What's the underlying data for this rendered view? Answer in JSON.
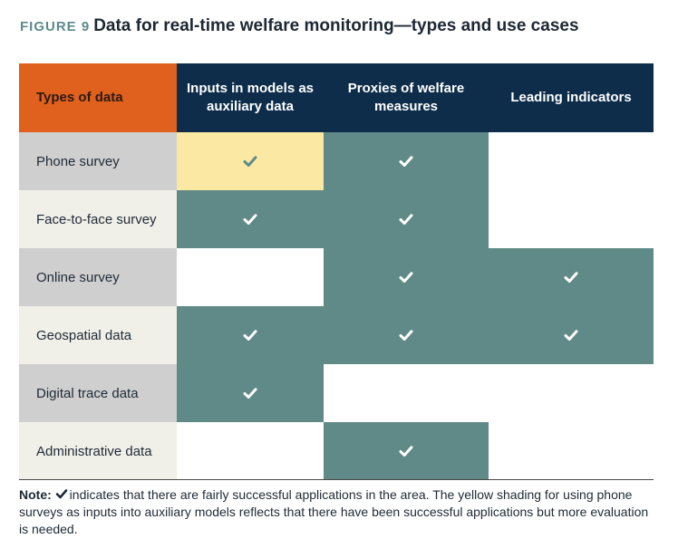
{
  "figure": {
    "label": "FIGURE 9",
    "title": "Data for real-time welfare monitoring—types and use cases"
  },
  "table": {
    "header": {
      "types": "Types of data",
      "col1": "Inputs in models as auxiliary data",
      "col2": "Proxies of welfare measures",
      "col3": "Leading indicators"
    },
    "rows": [
      {
        "label": "Phone survey",
        "col1": "yellow-check",
        "col2": "teal-check",
        "col3": "empty"
      },
      {
        "label": "Face-to-face survey",
        "col1": "teal-check",
        "col2": "teal-check",
        "col3": "empty"
      },
      {
        "label": "Online survey",
        "col1": "empty",
        "col2": "teal-check",
        "col3": "teal-check"
      },
      {
        "label": "Geospatial data",
        "col1": "teal-check",
        "col2": "teal-check",
        "col3": "teal-check"
      },
      {
        "label": "Digital trace data",
        "col1": "teal-check",
        "col2": "empty",
        "col3": "empty"
      },
      {
        "label": "Administrative data",
        "col1": "empty",
        "col2": "teal-check",
        "col3": "empty"
      }
    ]
  },
  "note": {
    "label": "Note:",
    "icon": "checkmark-icon",
    "text": "indicates that there are fairly successful applications in the area. The yellow shading for using phone surveys as inputs into auxiliary models reflects that there have been successful applications but more evaluation is needed."
  },
  "colors": {
    "header_navy": "#0d2d4a",
    "header_orange": "#e0611e",
    "teal": "#5f8a87",
    "yellow": "#fbe9a3",
    "label_gray": "#cfcfcf",
    "label_cream": "#f0efe8"
  }
}
